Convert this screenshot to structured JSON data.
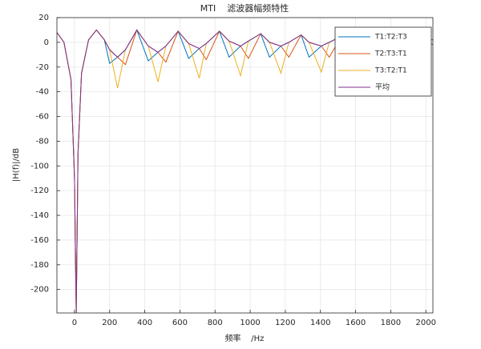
{
  "chart_data": {
    "type": "line",
    "title": "MTI    滤波器幅频特性",
    "xlabel": "频率    /Hz",
    "ylabel": "|H(f)|/dB",
    "x": [
      -100,
      -60,
      -20,
      0,
      10,
      20,
      40,
      80,
      125,
      170,
      200,
      245,
      290,
      355,
      420,
      475,
      520,
      590,
      650,
      710,
      750,
      825,
      880,
      945,
      990,
      1060,
      1110,
      1175,
      1220,
      1290,
      1335,
      1405,
      1450,
      1520,
      1570,
      1640,
      1680,
      1750,
      1800,
      1870,
      1910,
      1980,
      2040
    ],
    "series": [
      {
        "name": "T1:T2:T3",
        "color": "#0072BD",
        "values": [
          8,
          0,
          -30,
          -110,
          -219,
          -90,
          -25,
          2,
          10,
          2,
          -17,
          -12,
          -6,
          10,
          -15,
          -8,
          -3,
          9,
          -13,
          -5,
          -1,
          9,
          -12,
          -3,
          1,
          7,
          -12,
          -3,
          0,
          6,
          -12,
          -3,
          0,
          5,
          -11,
          -2,
          0,
          4,
          -10,
          -2,
          0,
          3,
          -2
        ]
      },
      {
        "name": "T2:T3:T1",
        "color": "#D95319",
        "values": [
          8,
          0,
          -30,
          -110,
          -219,
          -90,
          -25,
          2,
          10,
          2,
          -6,
          -12,
          -18,
          10,
          -3,
          -8,
          -16,
          9,
          -1,
          -5,
          -14,
          9,
          1,
          -3,
          -13,
          7,
          0,
          -3,
          -12,
          6,
          0,
          -3,
          -12,
          5,
          0,
          -2,
          -11,
          4,
          0,
          -2,
          -10,
          3,
          2
        ]
      },
      {
        "name": "T3:T2:T1",
        "color": "#EDB120",
        "values": [
          8,
          0,
          -30,
          -110,
          -219,
          -90,
          -25,
          2,
          10,
          2,
          -6,
          -37,
          -6,
          10,
          -3,
          -32,
          -3,
          9,
          -1,
          -29,
          -1,
          9,
          1,
          -27,
          1,
          7,
          0,
          -25,
          0,
          6,
          0,
          -24,
          0,
          5,
          0,
          -20,
          0,
          4,
          0,
          -19,
          0,
          3,
          2
        ]
      },
      {
        "name": "平均",
        "color": "#7E2F8E",
        "values": [
          8,
          0,
          -30,
          -110,
          -219,
          -90,
          -25,
          2,
          10,
          2,
          -6,
          -12,
          -6,
          10,
          -3,
          -8,
          -3,
          9,
          -1,
          -5,
          -1,
          9,
          1,
          -3,
          1,
          7,
          0,
          -3,
          0,
          6,
          0,
          -3,
          0,
          5,
          0,
          -2,
          0,
          4,
          0,
          -2,
          0,
          3,
          2
        ]
      }
    ],
    "xlim": [
      -100,
      2040
    ],
    "ylim": [
      -219,
      20
    ],
    "xticks": [
      0,
      200,
      400,
      600,
      800,
      1000,
      1200,
      1400,
      1600,
      1800,
      2000
    ],
    "yticks": [
      20,
      0,
      -20,
      -40,
      -60,
      -80,
      -100,
      -120,
      -140,
      -160,
      -180,
      -200
    ],
    "grid": true,
    "legend": "northeast"
  }
}
